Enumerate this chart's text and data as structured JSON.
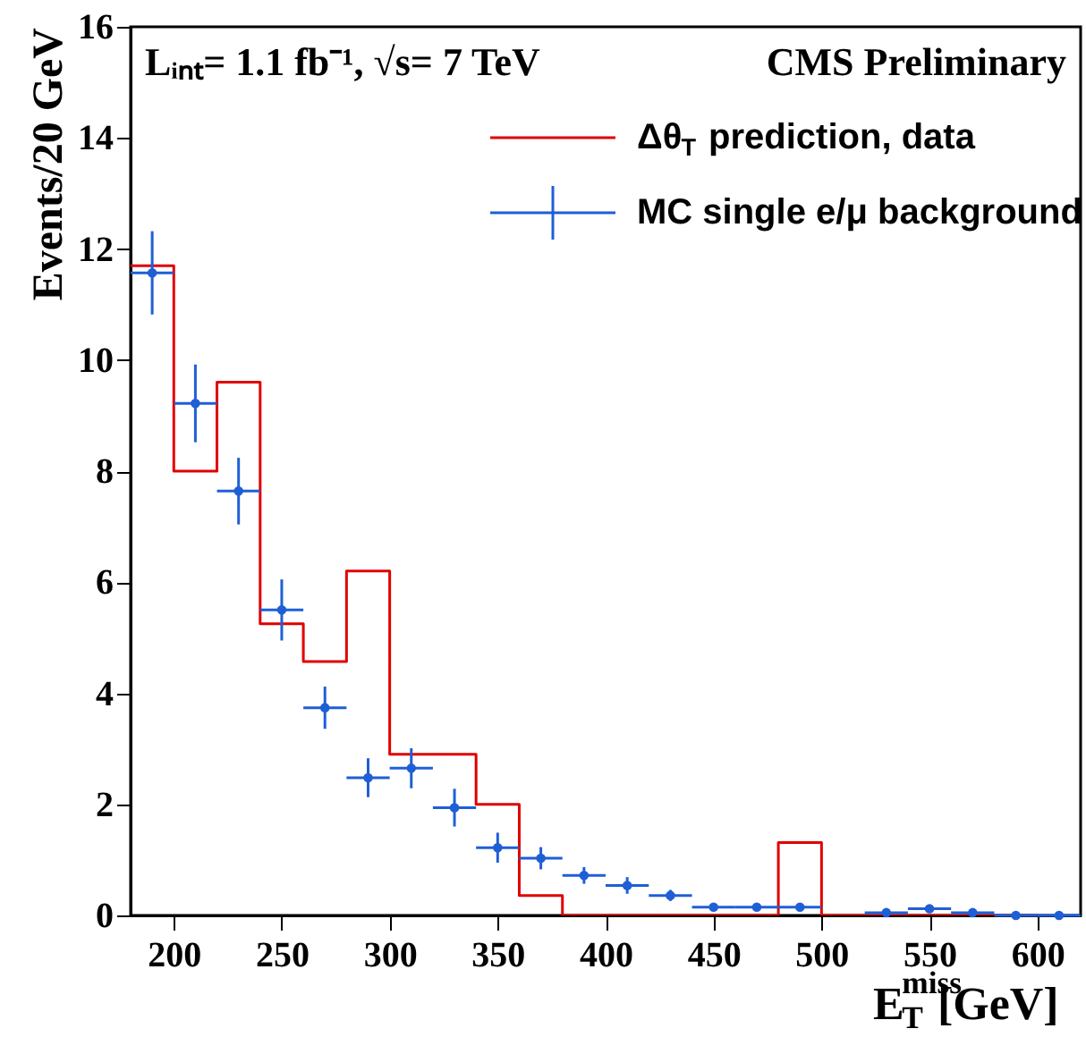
{
  "chart_data": {
    "type": "step",
    "xlabel": "E$^{miss}$$_{T}$ [GeV]",
    "ylabel": "Events/20 GeV",
    "annotations": [
      "Lᵢₙₜ= 1.1 fb⁻¹, √s= 7 TeV",
      "CMS Preliminary"
    ],
    "xlim": [
      180,
      620
    ],
    "xticks": [
      200,
      250,
      300,
      350,
      400,
      450,
      500,
      550,
      600
    ],
    "ylim": [
      0,
      16
    ],
    "yticks": [
      0,
      2,
      4,
      6,
      8,
      10,
      12,
      14,
      16
    ],
    "grid": false,
    "legend": "top right",
    "series": [
      {
        "name": "Δθ$_{T}$ prediction, data",
        "color": "#e00000",
        "x": [
          180,
          200,
          220,
          240,
          260,
          280,
          300,
          320,
          340,
          360,
          380,
          400,
          420,
          440,
          460,
          480,
          500,
          520,
          540,
          560,
          580,
          600
        ],
        "values": [
          11.7,
          8.0,
          9.6,
          5.25,
          4.57,
          6.2,
          2.9,
          2.9,
          2.0,
          0.36,
          0,
          0,
          0,
          0,
          0,
          1.31,
          0,
          0,
          0,
          0,
          0,
          0
        ]
      },
      {
        "name": "MC single e/μ background",
        "type": "scatter",
        "marker": "circle",
        "color": "#1f5fd6",
        "x": [
          190,
          210,
          230,
          250,
          270,
          290,
          310,
          330,
          350,
          370,
          390,
          410,
          430,
          450,
          470,
          490,
          510,
          530,
          550,
          570,
          590,
          610
        ],
        "values": [
          11.57,
          9.22,
          7.64,
          5.5,
          3.74,
          2.48,
          2.65,
          1.94,
          1.22,
          1.03,
          0.72,
          0.54,
          0.36,
          0.15,
          0.15,
          0.15,
          null,
          0.05,
          0.12,
          0.05,
          0,
          0
        ],
        "errors": [
          0.75,
          0.7,
          0.6,
          0.55,
          0.38,
          0.35,
          0.36,
          0.34,
          0.27,
          0.2,
          0.15,
          0.15,
          0.1,
          null,
          null,
          null,
          null,
          null,
          null,
          null,
          null,
          null
        ],
        "xerrors": [
          10,
          10,
          10,
          10,
          10,
          10,
          10,
          10,
          10,
          10,
          10,
          10,
          10,
          10,
          10,
          10,
          null,
          10,
          10,
          10,
          10,
          10
        ]
      }
    ]
  }
}
